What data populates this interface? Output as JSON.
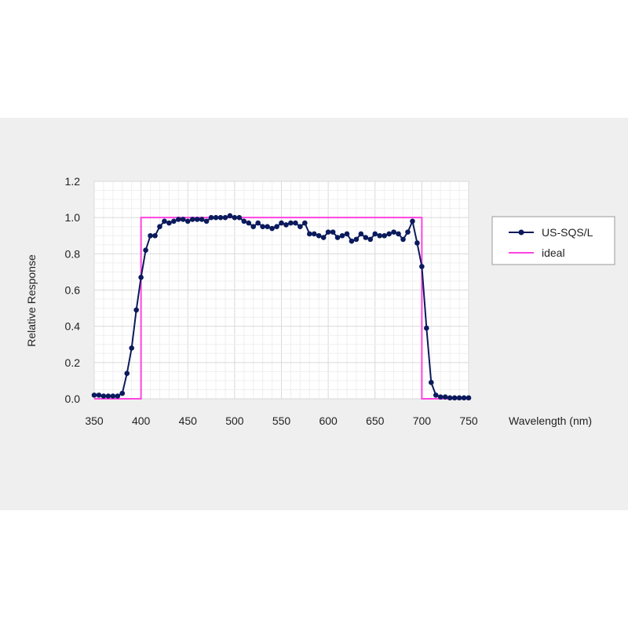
{
  "chart_data": {
    "type": "line",
    "xlabel": "Wavelength (nm)",
    "ylabel": "Relative Response",
    "xlim": [
      350,
      750
    ],
    "ylim": [
      0,
      1.2
    ],
    "x_ticks": [
      350,
      400,
      450,
      500,
      550,
      600,
      650,
      700,
      750
    ],
    "y_ticks": [
      "0.0",
      "0.2",
      "0.4",
      "0.6",
      "0.8",
      "1.0",
      "1.2"
    ],
    "grid": true,
    "legend_position": "right",
    "series": [
      {
        "name": "US-SQS/L",
        "color": "#0b1a5c",
        "marker": "circle",
        "points": [
          [
            350,
            0.02
          ],
          [
            355,
            0.02
          ],
          [
            360,
            0.015
          ],
          [
            365,
            0.015
          ],
          [
            370,
            0.015
          ],
          [
            375,
            0.015
          ],
          [
            380,
            0.03
          ],
          [
            385,
            0.14
          ],
          [
            390,
            0.28
          ],
          [
            395,
            0.49
          ],
          [
            400,
            0.67
          ],
          [
            405,
            0.82
          ],
          [
            410,
            0.9
          ],
          [
            415,
            0.9
          ],
          [
            420,
            0.95
          ],
          [
            425,
            0.98
          ],
          [
            430,
            0.97
          ],
          [
            435,
            0.98
          ],
          [
            440,
            0.99
          ],
          [
            445,
            0.99
          ],
          [
            450,
            0.98
          ],
          [
            455,
            0.99
          ],
          [
            460,
            0.99
          ],
          [
            465,
            0.99
          ],
          [
            470,
            0.98
          ],
          [
            475,
            1.0
          ],
          [
            480,
            1.0
          ],
          [
            485,
            1.0
          ],
          [
            490,
            1.0
          ],
          [
            495,
            1.01
          ],
          [
            500,
            1.0
          ],
          [
            505,
            1.0
          ],
          [
            510,
            0.98
          ],
          [
            515,
            0.97
          ],
          [
            520,
            0.95
          ],
          [
            525,
            0.97
          ],
          [
            530,
            0.95
          ],
          [
            535,
            0.95
          ],
          [
            540,
            0.94
          ],
          [
            545,
            0.95
          ],
          [
            550,
            0.97
          ],
          [
            555,
            0.96
          ],
          [
            560,
            0.97
          ],
          [
            565,
            0.97
          ],
          [
            570,
            0.95
          ],
          [
            575,
            0.97
          ],
          [
            580,
            0.91
          ],
          [
            585,
            0.91
          ],
          [
            590,
            0.9
          ],
          [
            595,
            0.89
          ],
          [
            600,
            0.92
          ],
          [
            605,
            0.92
          ],
          [
            610,
            0.89
          ],
          [
            615,
            0.9
          ],
          [
            620,
            0.91
          ],
          [
            625,
            0.87
          ],
          [
            630,
            0.88
          ],
          [
            635,
            0.91
          ],
          [
            640,
            0.89
          ],
          [
            645,
            0.88
          ],
          [
            650,
            0.91
          ],
          [
            655,
            0.9
          ],
          [
            660,
            0.9
          ],
          [
            665,
            0.91
          ],
          [
            670,
            0.92
          ],
          [
            675,
            0.91
          ],
          [
            680,
            0.88
          ],
          [
            685,
            0.92
          ],
          [
            690,
            0.98
          ],
          [
            695,
            0.86
          ],
          [
            700,
            0.73
          ],
          [
            705,
            0.39
          ],
          [
            710,
            0.09
          ],
          [
            715,
            0.02
          ],
          [
            720,
            0.01
          ],
          [
            725,
            0.01
          ],
          [
            730,
            0.005
          ],
          [
            735,
            0.005
          ],
          [
            740,
            0.005
          ],
          [
            745,
            0.005
          ],
          [
            750,
            0.005
          ]
        ]
      },
      {
        "name": "ideal",
        "color": "#ff44e0",
        "marker": "none",
        "points": [
          [
            350,
            0
          ],
          [
            400,
            0
          ],
          [
            400,
            1
          ],
          [
            700,
            1
          ],
          [
            700,
            0
          ],
          [
            750,
            0
          ]
        ]
      }
    ]
  }
}
